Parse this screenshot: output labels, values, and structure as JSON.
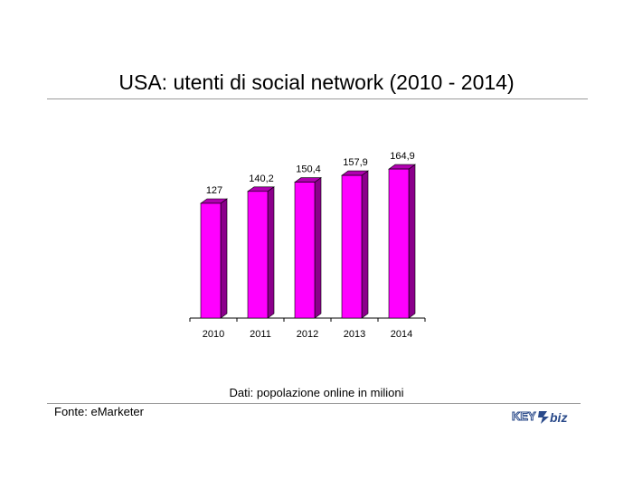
{
  "header": {
    "title": "USA: utenti di social network (2010 - 2014)"
  },
  "footer": {
    "note": "Dati: popolazione online in milioni",
    "source": "Fonte: eMarketer",
    "logo_text": "KEY4biz"
  },
  "colors": {
    "bar_front": "#ff00ff",
    "bar_side": "#8b008b",
    "bar_top": "#b000b0"
  },
  "chart_data": {
    "type": "bar",
    "title": "USA: utenti di social network (2010 - 2014)",
    "categories": [
      "2010",
      "2011",
      "2012",
      "2013",
      "2014"
    ],
    "values": [
      127,
      140.2,
      150.4,
      157.9,
      164.9
    ],
    "data_labels": [
      "127",
      "140,2",
      "150,4",
      "157,9",
      "164,9"
    ],
    "xlabel": "",
    "ylabel": "",
    "ylim": [
      0,
      165
    ],
    "grid": false,
    "legend": "none",
    "style": "3d-columns"
  }
}
